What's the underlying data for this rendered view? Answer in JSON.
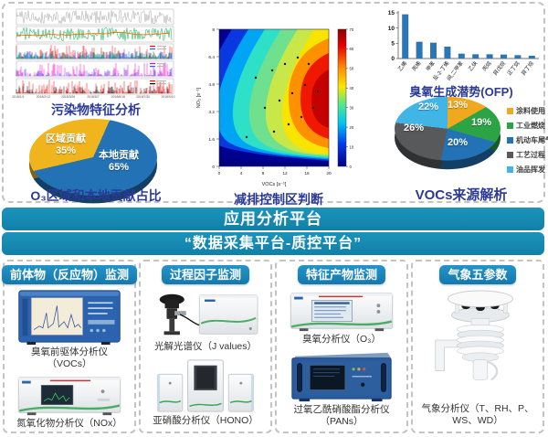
{
  "top": {
    "pollutant": {
      "caption": "污染物特征分析",
      "x_ticks": [
        "2018/1/1",
        "2018/2/12",
        "2018/3/26",
        "2018/5/7",
        "2018/6/18",
        "2018/7/30",
        "2018/9/10"
      ],
      "rows": [
        {
          "name": "row-1",
          "colors": [
            "#a6a6a6"
          ]
        },
        {
          "name": "row-2",
          "colors": [
            "#00b050",
            "#ff6600"
          ]
        },
        {
          "name": "row-3",
          "colors": [
            "#ff0000",
            "#2e5bff",
            "#7030a0",
            "#00a000",
            "#00b0f0"
          ]
        },
        {
          "name": "row-4",
          "colors": [
            "#ff00cc",
            "#2e5bff"
          ]
        },
        {
          "name": "row-5",
          "colors": [
            "#ff0000",
            "#000000"
          ]
        }
      ]
    },
    "contribution_pie": {
      "caption": "O₃区域和本地贡献占比",
      "slices": [
        {
          "label": "本地贡献65%",
          "value": 65,
          "color": "#2272b5"
        },
        {
          "label": "区域贡献35%",
          "value": 35,
          "color": "#f0b41c"
        }
      ]
    },
    "ekma": {
      "caption": "减排控制区判断",
      "xlabel": "VOCs [s⁻¹]",
      "ylabel": "NO₂ [s⁻¹]",
      "x_ticks": [
        0,
        4,
        8,
        12,
        16,
        20
      ],
      "y_ticks": [
        0,
        1.6,
        3.2,
        4.8,
        6.4,
        8
      ],
      "colorbar_ticks": [
        0,
        10,
        20,
        30,
        40,
        50,
        60,
        70
      ]
    },
    "ofp_bar": {
      "title": "臭氧生成潜势(OFP)",
      "categories": [
        "乙烯",
        "丙烯",
        "甲苯",
        "反-2-丁烯",
        "间,二甲苯",
        "乙炔",
        "丙烷",
        "异戊烷",
        "正丁烷",
        "异丁烷"
      ],
      "values": [
        14.5,
        5.5,
        5.2,
        3.9,
        1.6,
        1.4,
        1.4,
        1.3,
        1.1,
        0.9
      ],
      "y_ticks": [
        0,
        5,
        10,
        15
      ],
      "bar_color": "#2e75b6"
    },
    "voc_pie": {
      "caption": "VOCs来源解析",
      "slices": [
        {
          "label": "涂料使用",
          "pct": "13%",
          "value": 13,
          "color": "#f0a81c"
        },
        {
          "label": "工业燃烧",
          "pct": "19%",
          "value": 19,
          "color": "#2ca344"
        },
        {
          "label": "机动车尾气",
          "pct": "20%",
          "value": 20,
          "color": "#2272b5"
        },
        {
          "label": "工艺过程",
          "pct": "26%",
          "value": 26,
          "color": "#58595b"
        },
        {
          "label": "油品挥发",
          "pct": "22%",
          "value": 22,
          "color": "#41b6e6"
        }
      ]
    }
  },
  "banners": [
    {
      "label": "应用分析平台"
    },
    {
      "label": "“数据采集平台-质控平台”"
    }
  ],
  "panels": [
    {
      "header": "前体物（反应物）监测",
      "instruments": [
        {
          "caption_line1": "臭氧前驱体分析仪",
          "caption_line2": "（VOCs）"
        },
        {
          "caption_line1": "氮氧化物分析仪（NOx）",
          "caption_line2": ""
        }
      ]
    },
    {
      "header": "过程因子监测",
      "instruments": [
        {
          "caption_line1": "光解光谱仪（J values）",
          "caption_line2": ""
        },
        {
          "caption_line1": "亚硝酸分析仪（HONO）",
          "caption_line2": ""
        }
      ]
    },
    {
      "header": "特征产物监测",
      "instruments": [
        {
          "caption_line1": "臭氧分析仪（O₃）",
          "caption_line2": ""
        },
        {
          "caption_line1": "过氧乙酰硝酸酯分析仪",
          "caption_line2": "（PANs）"
        }
      ]
    },
    {
      "header": "气象五参数",
      "instruments": [
        {
          "caption_line1": "气象分析仪（T、RH、P、",
          "caption_line2": "WS、WD）"
        }
      ]
    }
  ],
  "chart_data": [
    {
      "type": "line",
      "title": "污染物特征分析",
      "description": "Five stacked pollutant time-series thumbnails (gray, green+orange, multi-color spikes, magenta+blue, red+black) spanning 2018/1 to 2018/9",
      "x_range": [
        "2018/1/1",
        "2018/9/10"
      ]
    },
    {
      "type": "pie",
      "title": "O₃区域和本地贡献占比",
      "labels": [
        "本地贡献",
        "区域贡献"
      ],
      "values": [
        65,
        35
      ]
    },
    {
      "type": "heatmap",
      "title": "减排控制区判断 (EKMA isopleth)",
      "xlabel": "VOCs [s⁻¹]",
      "ylabel": "NO₂ [s⁻¹]",
      "xlim": [
        0,
        20
      ],
      "ylim": [
        0,
        8
      ],
      "colorbar_range": [
        0,
        70
      ]
    },
    {
      "type": "bar",
      "title": "臭氧生成潜势(OFP)",
      "categories": [
        "乙烯",
        "丙烯",
        "甲苯",
        "反-2-丁烯",
        "间,二甲苯",
        "乙炔",
        "丙烷",
        "异戊烷",
        "正丁烷",
        "异丁烷"
      ],
      "values": [
        14.5,
        5.5,
        5.2,
        3.9,
        1.6,
        1.4,
        1.4,
        1.3,
        1.1,
        0.9
      ],
      "ylim": [
        0,
        15
      ]
    },
    {
      "type": "pie",
      "title": "VOCs来源解析",
      "labels": [
        "涂料使用",
        "工业燃烧",
        "机动车尾气",
        "工艺过程",
        "油品挥发"
      ],
      "values": [
        13,
        19,
        20,
        26,
        22
      ],
      "legend_position": "right"
    }
  ]
}
